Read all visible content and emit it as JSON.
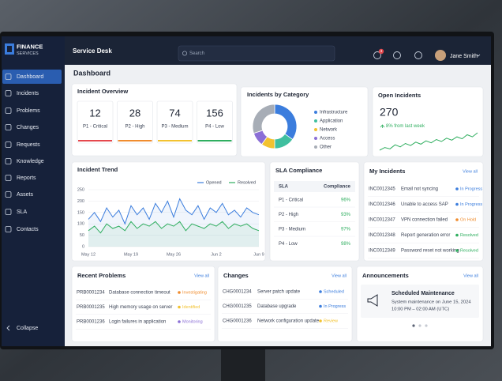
{
  "brand": {
    "line1": "FINANCE",
    "line2": "SERVICES"
  },
  "sidebar": {
    "nav": [
      "Dashboard",
      "Incidents",
      "Problems",
      "Changes",
      "Requests",
      "Knowledge",
      "Reports",
      "Assets",
      "SLA",
      "Contacts"
    ],
    "collapse": "Collapse"
  },
  "topbar": {
    "title": "Service Desk",
    "search_placeholder": "Search",
    "notification_count": 3,
    "user": "Jane Smith"
  },
  "page_title": "Dashboard",
  "incident_overview": {
    "title": "Incident Overview",
    "kpis": [
      {
        "value": 12,
        "label": "P1 - Critical",
        "color": "#e5484d"
      },
      {
        "value": 28,
        "label": "P2 - High",
        "color": "#f08c2e"
      },
      {
        "value": 74,
        "label": "P3 - Medium",
        "color": "#f2c230"
      },
      {
        "value": 156,
        "label": "P4 - Low",
        "color": "#2fae5f"
      }
    ]
  },
  "incidents_by_category": {
    "title": "Incidents by Category",
    "chart_data": {
      "type": "pie",
      "donut": true,
      "categories": [
        "Infrastructure",
        "Application",
        "Network",
        "Access",
        "Other"
      ],
      "values": [
        35,
        15,
        10,
        10,
        30
      ],
      "colors": [
        "#3b7ddd",
        "#3fbf9f",
        "#f2c230",
        "#8b6fd6",
        "#a7adb6"
      ]
    }
  },
  "open_incidents": {
    "title": "Open Incidents",
    "value": 270,
    "change": "8% from last week",
    "trend": {
      "type": "line",
      "color": "#2fae5f",
      "values": [
        10,
        14,
        12,
        18,
        15,
        20,
        17,
        22,
        19,
        24,
        21,
        26,
        23,
        28,
        25,
        30,
        27,
        33,
        30,
        36
      ]
    }
  },
  "incident_trend": {
    "title": "Incident Trend",
    "chart_data": {
      "type": "line",
      "categories": [
        "May 12",
        null,
        null,
        null,
        null,
        null,
        null,
        "May 19",
        null,
        null,
        null,
        null,
        null,
        null,
        "May 26",
        null,
        null,
        null,
        null,
        null,
        null,
        "Jun 2",
        null,
        null,
        null,
        null,
        null,
        null,
        "Jun 9"
      ],
      "series": [
        {
          "name": "Opened",
          "color": "#3b7ddd",
          "values": [
            120,
            150,
            110,
            170,
            130,
            160,
            100,
            180,
            140,
            170,
            120,
            190,
            150,
            200,
            130,
            210,
            160,
            140,
            180,
            120,
            170,
            150,
            190,
            140,
            160,
            130,
            170,
            150,
            140
          ]
        },
        {
          "name": "Resolved",
          "color": "#2fae5f",
          "values": [
            70,
            90,
            60,
            100,
            80,
            90,
            70,
            110,
            80,
            100,
            90,
            110,
            80,
            100,
            90,
            110,
            70,
            100,
            90,
            80,
            100,
            90,
            110,
            80,
            100,
            90,
            100,
            80,
            70
          ]
        }
      ],
      "ylim": [
        0,
        250
      ],
      "yticks": [
        0,
        50,
        100,
        150,
        200,
        250
      ],
      "grid": true,
      "legend": "top-right"
    }
  },
  "sla_compliance": {
    "title": "SLA Compliance",
    "columns": [
      "SLA",
      "Compliance"
    ],
    "rows": [
      [
        "P1 - Critical",
        "96%"
      ],
      [
        "P2 - High",
        "93%"
      ],
      [
        "P3 - Medium",
        "97%"
      ],
      [
        "P4 - Low",
        "98%"
      ]
    ]
  },
  "my_incidents": {
    "title": "My Incidents",
    "view_all": "View all",
    "rows": [
      {
        "id": "INC0012345",
        "title": "Email not syncing",
        "status": "In Progress",
        "status_color": "#3b7ddd"
      },
      {
        "id": "INC0012346",
        "title": "Unable to access SAP",
        "status": "In Progress",
        "status_color": "#3b7ddd"
      },
      {
        "id": "INC0012347",
        "title": "VPN connection failed",
        "status": "On Hold",
        "status_color": "#f08c2e"
      },
      {
        "id": "INC0012348",
        "title": "Report generation error",
        "status": "Resolved",
        "status_color": "#2fae5f"
      },
      {
        "id": "INC0012349",
        "title": "Password reset not working",
        "status": "Resolved",
        "status_color": "#2fae5f"
      }
    ]
  },
  "recent_problems": {
    "title": "Recent Problems",
    "view_all": "View all",
    "rows": [
      {
        "id": "PRB0001234",
        "title": "Database connection timeout",
        "status": "Investigating",
        "status_color": "#f08c2e"
      },
      {
        "id": "PRB0001235",
        "title": "High memory usage on server",
        "status": "Identified",
        "status_color": "#f2c230"
      },
      {
        "id": "PRB0001236",
        "title": "Login failures in application",
        "status": "Monitoring",
        "status_color": "#8b6fd6"
      }
    ]
  },
  "changes": {
    "title": "Changes",
    "view_all": "View all",
    "rows": [
      {
        "id": "CHG0001234",
        "title": "Server patch update",
        "status": "Scheduled",
        "status_color": "#3b7ddd"
      },
      {
        "id": "CHG0001235",
        "title": "Database upgrade",
        "status": "In Progress",
        "status_color": "#3b7ddd"
      },
      {
        "id": "CHG0001236",
        "title": "Network configuration update",
        "status": "Review",
        "status_color": "#f2c230"
      }
    ]
  },
  "announcements": {
    "title": "Announcements",
    "view_all": "View all",
    "items": [
      {
        "title": "Scheduled Maintenance",
        "line1": "System maintenance on June 15, 2024",
        "line2": "10:00 PM – 02:00 AM (UTC)"
      }
    ]
  }
}
